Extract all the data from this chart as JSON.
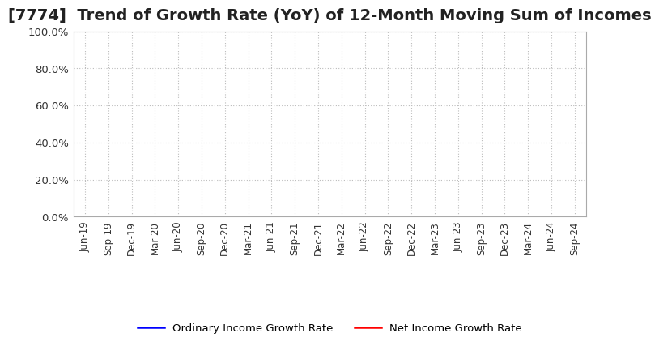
{
  "title": "[7774]  Trend of Growth Rate (YoY) of 12-Month Moving Sum of Incomes",
  "title_fontsize": 14,
  "title_color": "#222222",
  "ylim": [
    0.0,
    1.0
  ],
  "yticks": [
    0.0,
    0.2,
    0.4,
    0.6,
    0.8,
    1.0
  ],
  "ytick_labels": [
    "0.0%",
    "20.0%",
    "40.0%",
    "60.0%",
    "80.0%",
    "100.0%"
  ],
  "x_labels": [
    "Jun-19",
    "Sep-19",
    "Dec-19",
    "Mar-20",
    "Jun-20",
    "Sep-20",
    "Dec-20",
    "Mar-21",
    "Jun-21",
    "Sep-21",
    "Dec-21",
    "Mar-22",
    "Jun-22",
    "Sep-22",
    "Dec-22",
    "Mar-23",
    "Jun-23",
    "Sep-23",
    "Dec-23",
    "Mar-24",
    "Jun-24",
    "Sep-24"
  ],
  "ordinary_income_growth": [
    null,
    null,
    null,
    null,
    null,
    null,
    null,
    null,
    null,
    null,
    null,
    null,
    null,
    null,
    null,
    null,
    null,
    null,
    null,
    null,
    null,
    null
  ],
  "net_income_growth": [
    null,
    null,
    null,
    null,
    null,
    null,
    null,
    null,
    null,
    null,
    null,
    null,
    null,
    null,
    null,
    null,
    null,
    null,
    null,
    null,
    null,
    null
  ],
  "line_color_ordinary": "#0000ff",
  "line_color_net": "#ff0000",
  "line_width": 1.8,
  "legend_ordinary": "Ordinary Income Growth Rate",
  "legend_net": "Net Income Growth Rate",
  "grid_color": "#bbbbbb",
  "background_color": "#ffffff",
  "plot_bg_color": "#ffffff",
  "spine_color": "#aaaaaa"
}
